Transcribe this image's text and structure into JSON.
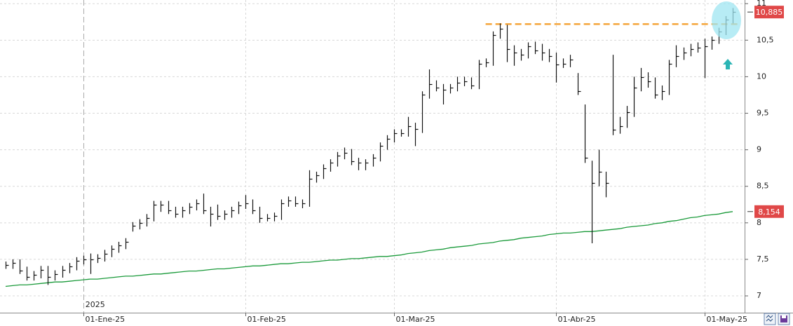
{
  "chart_data": {
    "type": "hlc",
    "categories": [
      null,
      null,
      null,
      null,
      null,
      null,
      null,
      null,
      null,
      null,
      null,
      "01-Ene-25",
      null,
      null,
      null,
      null,
      null,
      null,
      null,
      null,
      null,
      null,
      null,
      null,
      null,
      null,
      null,
      null,
      null,
      null,
      null,
      null,
      null,
      null,
      "01-Feb-25",
      null,
      null,
      null,
      null,
      null,
      null,
      null,
      null,
      null,
      null,
      null,
      null,
      null,
      null,
      null,
      null,
      null,
      null,
      null,
      null,
      "01-Mar-25",
      null,
      null,
      null,
      null,
      null,
      null,
      null,
      null,
      null,
      null,
      null,
      null,
      null,
      null,
      null,
      null,
      null,
      null,
      null,
      null,
      null,
      null,
      "01-Abr-25",
      null,
      null,
      null,
      null,
      null,
      null,
      null,
      null,
      null,
      null,
      null,
      null,
      null,
      null,
      null,
      null,
      null,
      null,
      null,
      null,
      "01-May-25",
      null,
      null,
      null,
      null
    ],
    "annotations": [
      "2025"
    ],
    "high": [
      7.47,
      7.5,
      7.5,
      7.4,
      7.34,
      7.41,
      7.41,
      7.35,
      7.41,
      7.45,
      7.53,
      7.55,
      7.58,
      7.57,
      7.63,
      7.69,
      7.74,
      7.79,
      8.01,
      8.05,
      8.12,
      8.3,
      8.3,
      8.3,
      8.22,
      8.22,
      8.27,
      8.32,
      8.4,
      8.22,
      8.25,
      8.17,
      8.22,
      8.29,
      8.38,
      8.32,
      8.22,
      8.12,
      8.14,
      8.32,
      8.36,
      8.36,
      8.32,
      8.72,
      8.7,
      8.8,
      8.87,
      8.97,
      9.03,
      9.01,
      8.89,
      8.87,
      8.94,
      9.1,
      9.2,
      9.28,
      9.28,
      9.45,
      9.37,
      9.8,
      10.1,
      9.95,
      9.9,
      9.9,
      10.0,
      10.0,
      9.99,
      10.23,
      10.25,
      10.62,
      10.73,
      10.71,
      10.43,
      10.38,
      10.47,
      10.48,
      10.45,
      10.38,
      10.33,
      10.25,
      10.3,
      10.05,
      9.62,
      8.85,
      9.0,
      8.7,
      10.3,
      9.45,
      9.6,
      10.0,
      10.12,
      10.06,
      9.99,
      9.88,
      10.23,
      10.43,
      10.4,
      10.45,
      10.47,
      10.52,
      10.55,
      10.67,
      10.83,
      10.94
    ],
    "low": [
      7.37,
      7.37,
      7.3,
      7.21,
      7.21,
      7.24,
      7.15,
      7.21,
      7.25,
      7.31,
      7.35,
      7.43,
      7.3,
      7.45,
      7.47,
      7.53,
      7.59,
      7.64,
      7.88,
      7.91,
      7.95,
      8.02,
      8.15,
      8.12,
      8.07,
      8.07,
      8.12,
      8.17,
      8.12,
      7.95,
      8.04,
      8.04,
      8.07,
      8.12,
      8.19,
      8.12,
      8.0,
      8.02,
      8.02,
      8.04,
      8.22,
      8.22,
      8.2,
      8.22,
      8.55,
      8.6,
      8.7,
      8.77,
      8.87,
      8.79,
      8.72,
      8.72,
      8.77,
      8.84,
      9.0,
      9.1,
      9.18,
      9.18,
      9.05,
      9.23,
      9.7,
      9.8,
      9.62,
      9.77,
      9.8,
      9.87,
      9.83,
      9.83,
      10.13,
      10.15,
      10.52,
      10.2,
      10.15,
      10.22,
      10.25,
      10.31,
      10.22,
      10.2,
      9.92,
      10.12,
      10.13,
      9.75,
      8.82,
      7.72,
      8.5,
      8.35,
      9.2,
      9.22,
      9.3,
      9.45,
      9.8,
      9.85,
      9.7,
      9.68,
      9.75,
      10.13,
      10.23,
      10.28,
      10.33,
      9.98,
      10.37,
      10.45,
      10.57,
      10.73
    ],
    "close": [
      7.42,
      7.45,
      7.35,
      7.26,
      7.29,
      7.36,
      7.26,
      7.3,
      7.36,
      7.4,
      7.48,
      7.5,
      7.5,
      7.52,
      7.58,
      7.64,
      7.69,
      7.74,
      7.96,
      8.0,
      8.07,
      8.25,
      8.25,
      8.17,
      8.12,
      8.17,
      8.22,
      8.27,
      8.17,
      8.12,
      8.09,
      8.12,
      8.17,
      8.24,
      8.27,
      8.17,
      8.07,
      8.07,
      8.09,
      8.27,
      8.31,
      8.27,
      8.27,
      8.6,
      8.65,
      8.75,
      8.82,
      8.92,
      8.96,
      8.84,
      8.82,
      8.82,
      8.89,
      9.05,
      9.15,
      9.23,
      9.23,
      9.32,
      9.28,
      9.75,
      9.9,
      9.85,
      9.82,
      9.85,
      9.92,
      9.94,
      9.88,
      10.18,
      10.2,
      10.57,
      10.66,
      10.38,
      10.33,
      10.3,
      10.42,
      10.36,
      10.33,
      10.28,
      10.17,
      10.18,
      10.23,
      9.8,
      8.89,
      8.55,
      8.7,
      8.55,
      9.27,
      9.32,
      9.51,
      9.85,
      9.99,
      9.94,
      9.75,
      9.8,
      10.18,
      10.28,
      10.33,
      10.38,
      10.4,
      10.42,
      10.5,
      10.62,
      10.78,
      10.885
    ],
    "color": "#111111",
    "moving_average": {
      "color": "#1a9a3a",
      "values": [
        7.13,
        7.14,
        7.15,
        7.15,
        7.16,
        7.17,
        7.18,
        7.19,
        7.19,
        7.2,
        7.21,
        7.22,
        7.23,
        7.23,
        7.24,
        7.25,
        7.26,
        7.27,
        7.27,
        7.28,
        7.29,
        7.3,
        7.3,
        7.31,
        7.32,
        7.33,
        7.34,
        7.34,
        7.35,
        7.36,
        7.37,
        7.37,
        7.38,
        7.39,
        7.4,
        7.41,
        7.41,
        7.42,
        7.43,
        7.44,
        7.44,
        7.45,
        7.46,
        7.46,
        7.47,
        7.48,
        7.49,
        7.49,
        7.5,
        7.51,
        7.51,
        7.52,
        7.53,
        7.54,
        7.54,
        7.55,
        7.56,
        7.58,
        7.59,
        7.6,
        7.62,
        7.63,
        7.64,
        7.66,
        7.67,
        7.68,
        7.69,
        7.71,
        7.72,
        7.73,
        7.75,
        7.76,
        7.77,
        7.79,
        7.8,
        7.81,
        7.82,
        7.84,
        7.85,
        7.86,
        7.86,
        7.87,
        7.88,
        7.88,
        7.89,
        7.9,
        7.91,
        7.92,
        7.94,
        7.95,
        7.96,
        7.97,
        7.99,
        8.0,
        8.02,
        8.03,
        8.05,
        8.07,
        8.08,
        8.1,
        8.11,
        8.12,
        8.14,
        8.154
      ]
    },
    "last_price": {
      "value": 10.885,
      "label": "10,885"
    },
    "last_ma": {
      "value": 8.154,
      "label": "8,154"
    },
    "resistance": {
      "value": 10.72,
      "color": "#f5a53a"
    },
    "ylim": [
      6.77,
      11.05
    ],
    "yticks": [
      7,
      {
        "value": 7.5,
        "label": "7,5"
      },
      8,
      {
        "value": 8.5,
        "label": "8,5"
      },
      9,
      {
        "value": 9.5,
        "label": "9,5"
      },
      10,
      {
        "value": 10.5,
        "label": "10,5"
      },
      11
    ],
    "grid": true
  }
}
